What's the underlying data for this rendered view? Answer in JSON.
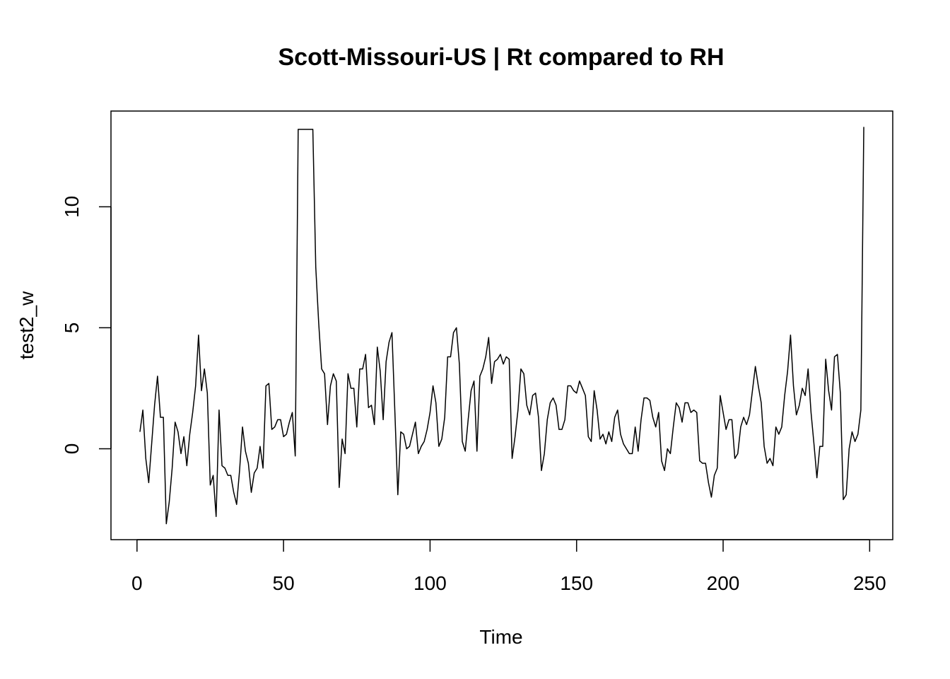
{
  "chart_data": {
    "type": "line",
    "title": "Scott-Missouri-US | Rt compared to RH",
    "xlabel": "Time",
    "ylabel": "test2_w",
    "xlim": [
      1,
      248
    ],
    "ylim": [
      -3.1,
      13.3
    ],
    "x_ticks": [
      0,
      50,
      100,
      150,
      200,
      250
    ],
    "y_ticks": [
      0,
      5,
      10
    ],
    "grid": false,
    "legend": "none",
    "line_color": "#000000",
    "series": [
      {
        "x_start": 1,
        "x_step": 1,
        "values": [
          0.7,
          1.6,
          -0.4,
          -1.4,
          0.2,
          1.8,
          3.0,
          1.3,
          1.3,
          -3.1,
          -2.2,
          -0.8,
          1.1,
          0.7,
          -0.2,
          0.5,
          -0.7,
          0.6,
          1.5,
          2.6,
          4.7,
          2.4,
          3.3,
          2.3,
          -1.5,
          -1.1,
          -2.8,
          1.6,
          -0.7,
          -0.8,
          -1.1,
          -1.1,
          -1.8,
          -2.3,
          -0.9,
          0.9,
          -0.1,
          -0.6,
          -1.8,
          -1.0,
          -0.8,
          0.1,
          -0.8,
          2.6,
          2.7,
          0.8,
          0.9,
          1.2,
          1.2,
          0.5,
          0.6,
          1.1,
          1.5,
          -0.3,
          13.2,
          13.2,
          13.2,
          13.2,
          13.2,
          13.2,
          7.5,
          5.2,
          3.3,
          3.1,
          1.0,
          2.6,
          3.1,
          2.8,
          -1.6,
          0.4,
          -0.2,
          3.1,
          2.5,
          2.5,
          0.9,
          3.3,
          3.3,
          3.9,
          1.7,
          1.8,
          1.0,
          4.2,
          3.2,
          1.2,
          3.6,
          4.4,
          4.8,
          1.5,
          -1.9,
          0.7,
          0.6,
          0.0,
          0.1,
          0.6,
          1.1,
          -0.2,
          0.1,
          0.3,
          0.8,
          1.5,
          2.6,
          1.9,
          0.1,
          0.4,
          1.3,
          3.8,
          3.8,
          4.8,
          5.0,
          3.5,
          0.3,
          -0.1,
          1.2,
          2.4,
          2.8,
          -0.1,
          3.0,
          3.3,
          3.8,
          4.6,
          2.7,
          3.6,
          3.7,
          3.9,
          3.5,
          3.8,
          3.7,
          -0.4,
          0.5,
          1.6,
          3.3,
          3.1,
          1.8,
          1.4,
          2.2,
          2.3,
          1.3,
          -0.9,
          -0.2,
          1.2,
          1.9,
          2.1,
          1.8,
          0.8,
          0.8,
          1.2,
          2.6,
          2.6,
          2.4,
          2.3,
          2.8,
          2.5,
          2.2,
          0.5,
          0.3,
          2.4,
          1.6,
          0.4,
          0.6,
          0.2,
          0.7,
          0.3,
          1.3,
          1.6,
          0.6,
          0.2,
          0.0,
          -0.2,
          -0.2,
          0.9,
          -0.1,
          1.2,
          2.1,
          2.1,
          2.0,
          1.3,
          0.9,
          1.5,
          -0.5,
          -0.9,
          0.0,
          -0.2,
          0.9,
          1.9,
          1.7,
          1.1,
          1.9,
          1.9,
          1.5,
          1.6,
          1.5,
          -0.5,
          -0.6,
          -0.6,
          -1.4,
          -2.0,
          -1.1,
          -0.8,
          2.2,
          1.5,
          0.8,
          1.2,
          1.2,
          -0.4,
          -0.2,
          0.9,
          1.3,
          1.0,
          1.4,
          2.4,
          3.4,
          2.6,
          1.9,
          0.1,
          -0.6,
          -0.4,
          -0.7,
          0.9,
          0.6,
          0.9,
          2.2,
          3.2,
          4.7,
          2.6,
          1.4,
          1.8,
          2.5,
          2.2,
          3.3,
          1.5,
          0.2,
          -1.2,
          0.1,
          0.1,
          3.7,
          2.4,
          1.6,
          3.8,
          3.9,
          2.3,
          -2.1,
          -1.9,
          0.0,
          0.7,
          0.3,
          0.6,
          1.6,
          13.3
        ]
      }
    ]
  }
}
